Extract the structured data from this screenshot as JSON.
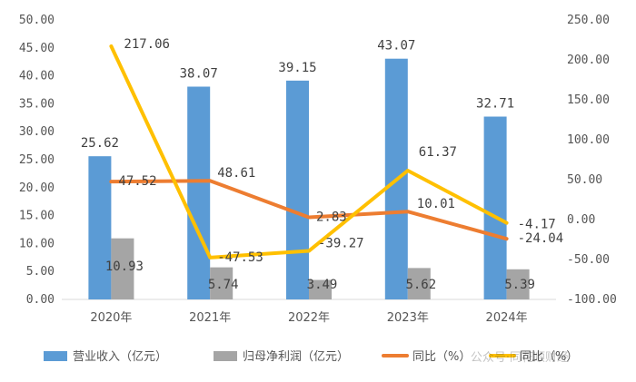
{
  "chart_data": {
    "type": "bar",
    "categories": [
      "2020年",
      "2021年",
      "2022年",
      "2023年",
      "2024年"
    ],
    "ylim_left": [
      0,
      50
    ],
    "yticks_left": [
      "0.00",
      "5.00",
      "10.00",
      "15.00",
      "20.00",
      "25.00",
      "30.00",
      "35.00",
      "40.00",
      "45.00",
      "50.00"
    ],
    "ylim_right": [
      -100,
      250
    ],
    "yticks_right": [
      "-100.00",
      "-50.00",
      "0.00",
      "50.00",
      "100.00",
      "150.00",
      "200.00",
      "250.00"
    ],
    "grid": false,
    "legend_position": "bottom",
    "series": [
      {
        "name": "营业收入（亿元）",
        "type": "bar",
        "axis": "left",
        "color": "#5B9BD5",
        "values": [
          25.62,
          38.07,
          39.15,
          43.07,
          32.71
        ],
        "labels": [
          "25.62",
          "38.07",
          "39.15",
          "43.07",
          "32.71"
        ]
      },
      {
        "name": "归母净利润（亿元）",
        "type": "bar",
        "axis": "left",
        "color": "#A5A5A5",
        "values": [
          10.93,
          5.74,
          3.49,
          5.62,
          5.39
        ],
        "labels": [
          "10.93",
          "5.74",
          "3.49",
          "5.62",
          "5.39"
        ]
      },
      {
        "name": "同比（%）",
        "type": "line",
        "axis": "right",
        "color": "#ED7D31",
        "values": [
          47.52,
          48.61,
          2.83,
          10.01,
          -24.04
        ],
        "labels": [
          "47.52",
          "48.61",
          "2.83",
          "10.01",
          "-24.04"
        ]
      },
      {
        "name": "同比（%）",
        "type": "line",
        "axis": "right",
        "color": "#FFC000",
        "values": [
          217.06,
          -47.53,
          -39.27,
          61.37,
          -4.17
        ],
        "labels": [
          "217.06",
          "-47.53",
          "-39.27",
          "61.37",
          "-4.17"
        ]
      }
    ]
  },
  "watermark": "公众号·同花顺财经"
}
